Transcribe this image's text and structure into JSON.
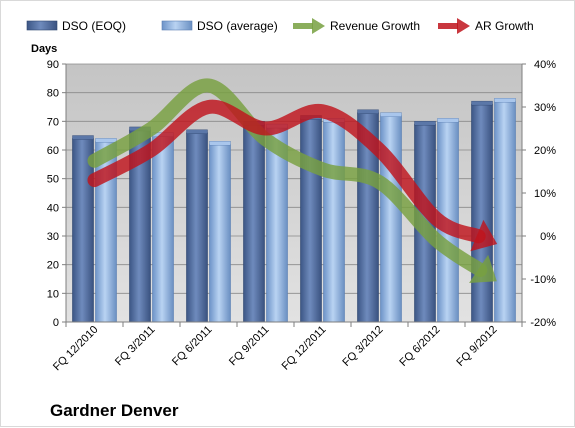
{
  "chart_data": {
    "type": "bar",
    "title": "",
    "company_label": "Gardner Denver",
    "ylabel": "Days",
    "y2label": "",
    "ylim": [
      0,
      90
    ],
    "y_ticks": [
      0,
      10,
      20,
      30,
      40,
      50,
      60,
      70,
      80,
      90
    ],
    "y2lim": [
      -20,
      40
    ],
    "y2_ticks": [
      "-20%",
      "-10%",
      "0%",
      "10%",
      "20%",
      "30%",
      "40%"
    ],
    "y2_tick_values": [
      -20,
      -10,
      0,
      10,
      20,
      30,
      40
    ],
    "grid": true,
    "legend_position": "top",
    "categories": [
      "FQ 12/2010",
      "FQ 3/2011",
      "FQ 6/2011",
      "FQ 9/2011",
      "FQ 12/2011",
      "FQ 3/2012",
      "FQ 6/2012",
      "FQ 9/2012"
    ],
    "series": [
      {
        "name": "DSO (EOQ)",
        "type": "bar",
        "axis": "left",
        "color": "#4f6b9c",
        "values": [
          64,
          67,
          66,
          69,
          71,
          73,
          69,
          76
        ]
      },
      {
        "name": "DSO (average)",
        "type": "bar",
        "axis": "left",
        "color": "#8fb4e3",
        "values": [
          63,
          65,
          62,
          68,
          70,
          72,
          70,
          77
        ]
      },
      {
        "name": "Revenue Growth",
        "type": "arrow-line",
        "axis": "right",
        "color": "#77a03f",
        "values": [
          17.5,
          25,
          35,
          22.5,
          15.5,
          12.5,
          -1,
          -10
        ]
      },
      {
        "name": "AR Growth",
        "type": "arrow-line",
        "axis": "right",
        "color": "#c0141c",
        "values": [
          13,
          20,
          30,
          25,
          29,
          20,
          4,
          -1.5
        ]
      }
    ]
  }
}
